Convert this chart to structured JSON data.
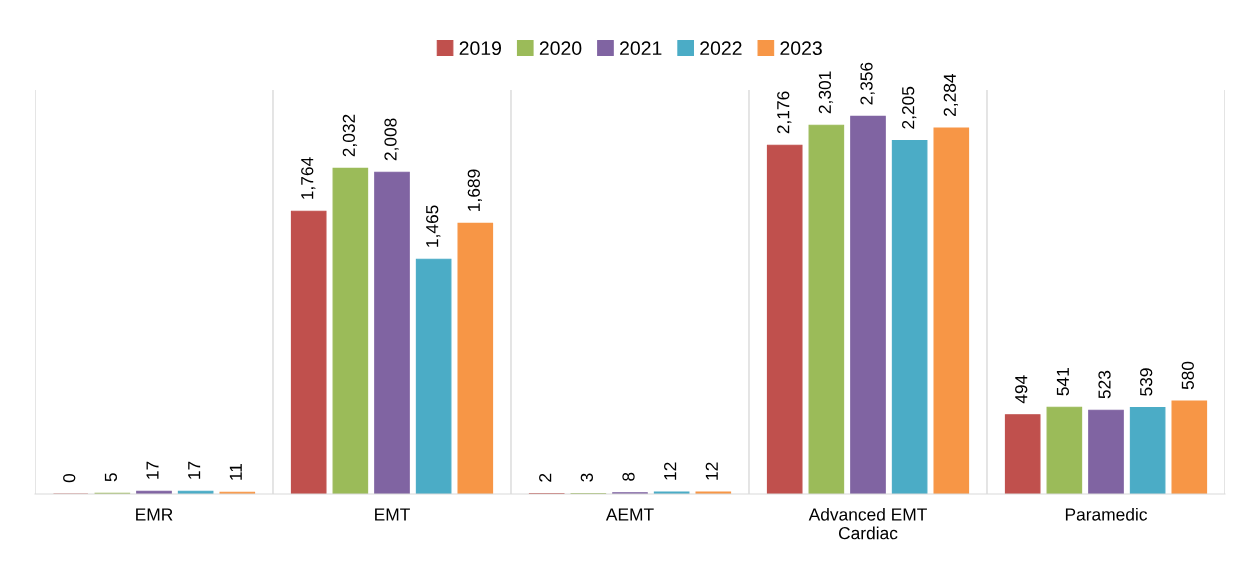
{
  "chart_data": {
    "type": "bar",
    "categories": [
      "EMR",
      "EMT",
      "AEMT",
      "Advanced EMT Cardiac",
      "Paramedic"
    ],
    "series": [
      {
        "name": "2019",
        "color": "#c0504d",
        "values": [
          0,
          1764,
          2,
          2176,
          494
        ],
        "value_labels": [
          "0",
          "1,764",
          "2",
          "2,176",
          "494"
        ]
      },
      {
        "name": "2020",
        "color": "#9bbb59",
        "values": [
          5,
          2032,
          3,
          2301,
          541
        ],
        "value_labels": [
          "5",
          "2,032",
          "3",
          "2,301",
          "541"
        ]
      },
      {
        "name": "2021",
        "color": "#8064a2",
        "values": [
          17,
          2008,
          8,
          2356,
          523
        ],
        "value_labels": [
          "17",
          "2,008",
          "8",
          "2,356",
          "523"
        ]
      },
      {
        "name": "2022",
        "color": "#4bacc6",
        "values": [
          17,
          1465,
          12,
          2205,
          539
        ],
        "value_labels": [
          "17",
          "1,465",
          "12",
          "2,205",
          "539"
        ]
      },
      {
        "name": "2023",
        "color": "#f79646",
        "values": [
          11,
          1689,
          12,
          2284,
          580
        ],
        "value_labels": [
          "11",
          "1,689",
          "12",
          "2,284",
          "580"
        ]
      }
    ],
    "legend": "top",
    "grid": false
  }
}
